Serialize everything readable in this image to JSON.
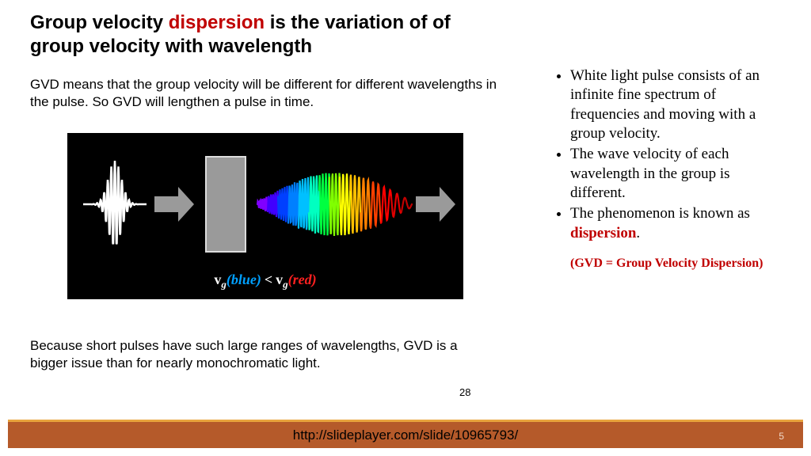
{
  "title": {
    "pre": "Group velocity ",
    "highlight": "dispersion",
    "post": " is the variation of of group velocity with wavelength"
  },
  "subtitle": "GVD means that the group velocity will be different for different wavelengths in the pulse.  So GVD will lengthen a pulse in time.",
  "figure": {
    "background": "#000000",
    "input_pulse_color": "#ffffff",
    "arrow_color": "#9a9a9a",
    "box_color": "#9a9a9a",
    "chirp_colors": [
      "#8000ff",
      "#4000ff",
      "#0040ff",
      "#0080ff",
      "#00c0ff",
      "#00ffc0",
      "#00ff40",
      "#80ff00",
      "#ffff00",
      "#ffc000",
      "#ff8000",
      "#ff4000",
      "#ff0000",
      "#e00000",
      "#c00000"
    ],
    "caption": {
      "vg": "v",
      "sub": "g",
      "blue": "(blue)",
      "lt": "<",
      "red": "(red)"
    }
  },
  "bottom_text": "Because short pulses have such large ranges of wavelengths, GVD is a bigger issue than for nearly monochromatic light.",
  "inner_page": "28",
  "bullets": [
    "White light pulse consists of an infinite fine spectrum of frequencies and moving with a group velocity.",
    "The wave velocity of each wavelength in the group is different.",
    {
      "pre": "The phenomenon is known as ",
      "highlight": "dispersion",
      "post": "."
    }
  ],
  "gvd_note": "(GVD = Group Velocity Dispersion)",
  "footer": {
    "url": "http://slideplayer.com/slide/10965793/",
    "page": "5",
    "bar_color": "#b55a2a",
    "line_color": "#e8a33d"
  }
}
